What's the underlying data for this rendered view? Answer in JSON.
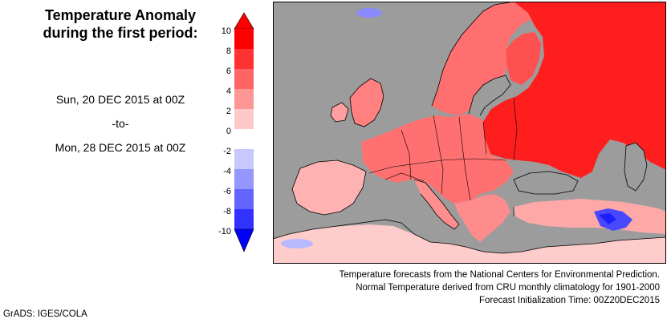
{
  "title": {
    "line1": "Temperature Anomaly",
    "line2": "during the first period:"
  },
  "period": {
    "start": "Sun, 20 DEC 2015 at 00Z",
    "separator": "-to-",
    "end": "Mon, 28 DEC 2015 at 00Z"
  },
  "legend": {
    "ticks": [
      "10",
      "8",
      "6",
      "4",
      "2",
      "0",
      "-2",
      "-4",
      "-6",
      "-8",
      "-10"
    ],
    "colors_top_to_bottom": [
      "#ff0000",
      "#ff3232",
      "#ff6464",
      "#ff9696",
      "#ffc8c8",
      "#ffffff",
      "#c8c8ff",
      "#9696ff",
      "#6464ff",
      "#3232ff",
      "#0000ff"
    ]
  },
  "colors": {
    "ocean": "#9c9c9c",
    "land_boundary": "#000000",
    "warm_strong": "#ff0000",
    "warm_light": "#ffb4b4",
    "cold": "#0000ff"
  },
  "credits": {
    "line1": "Temperature forecasts from the National Centers for Environmental Prediction.",
    "line2": "Normal Temperature derived from CRU monthly climatology for 1901-2000",
    "line3": "Forecast Initialization Time: 00Z20DEC2015"
  },
  "footer": {
    "grads": "GrADS: IGES/COLA"
  }
}
